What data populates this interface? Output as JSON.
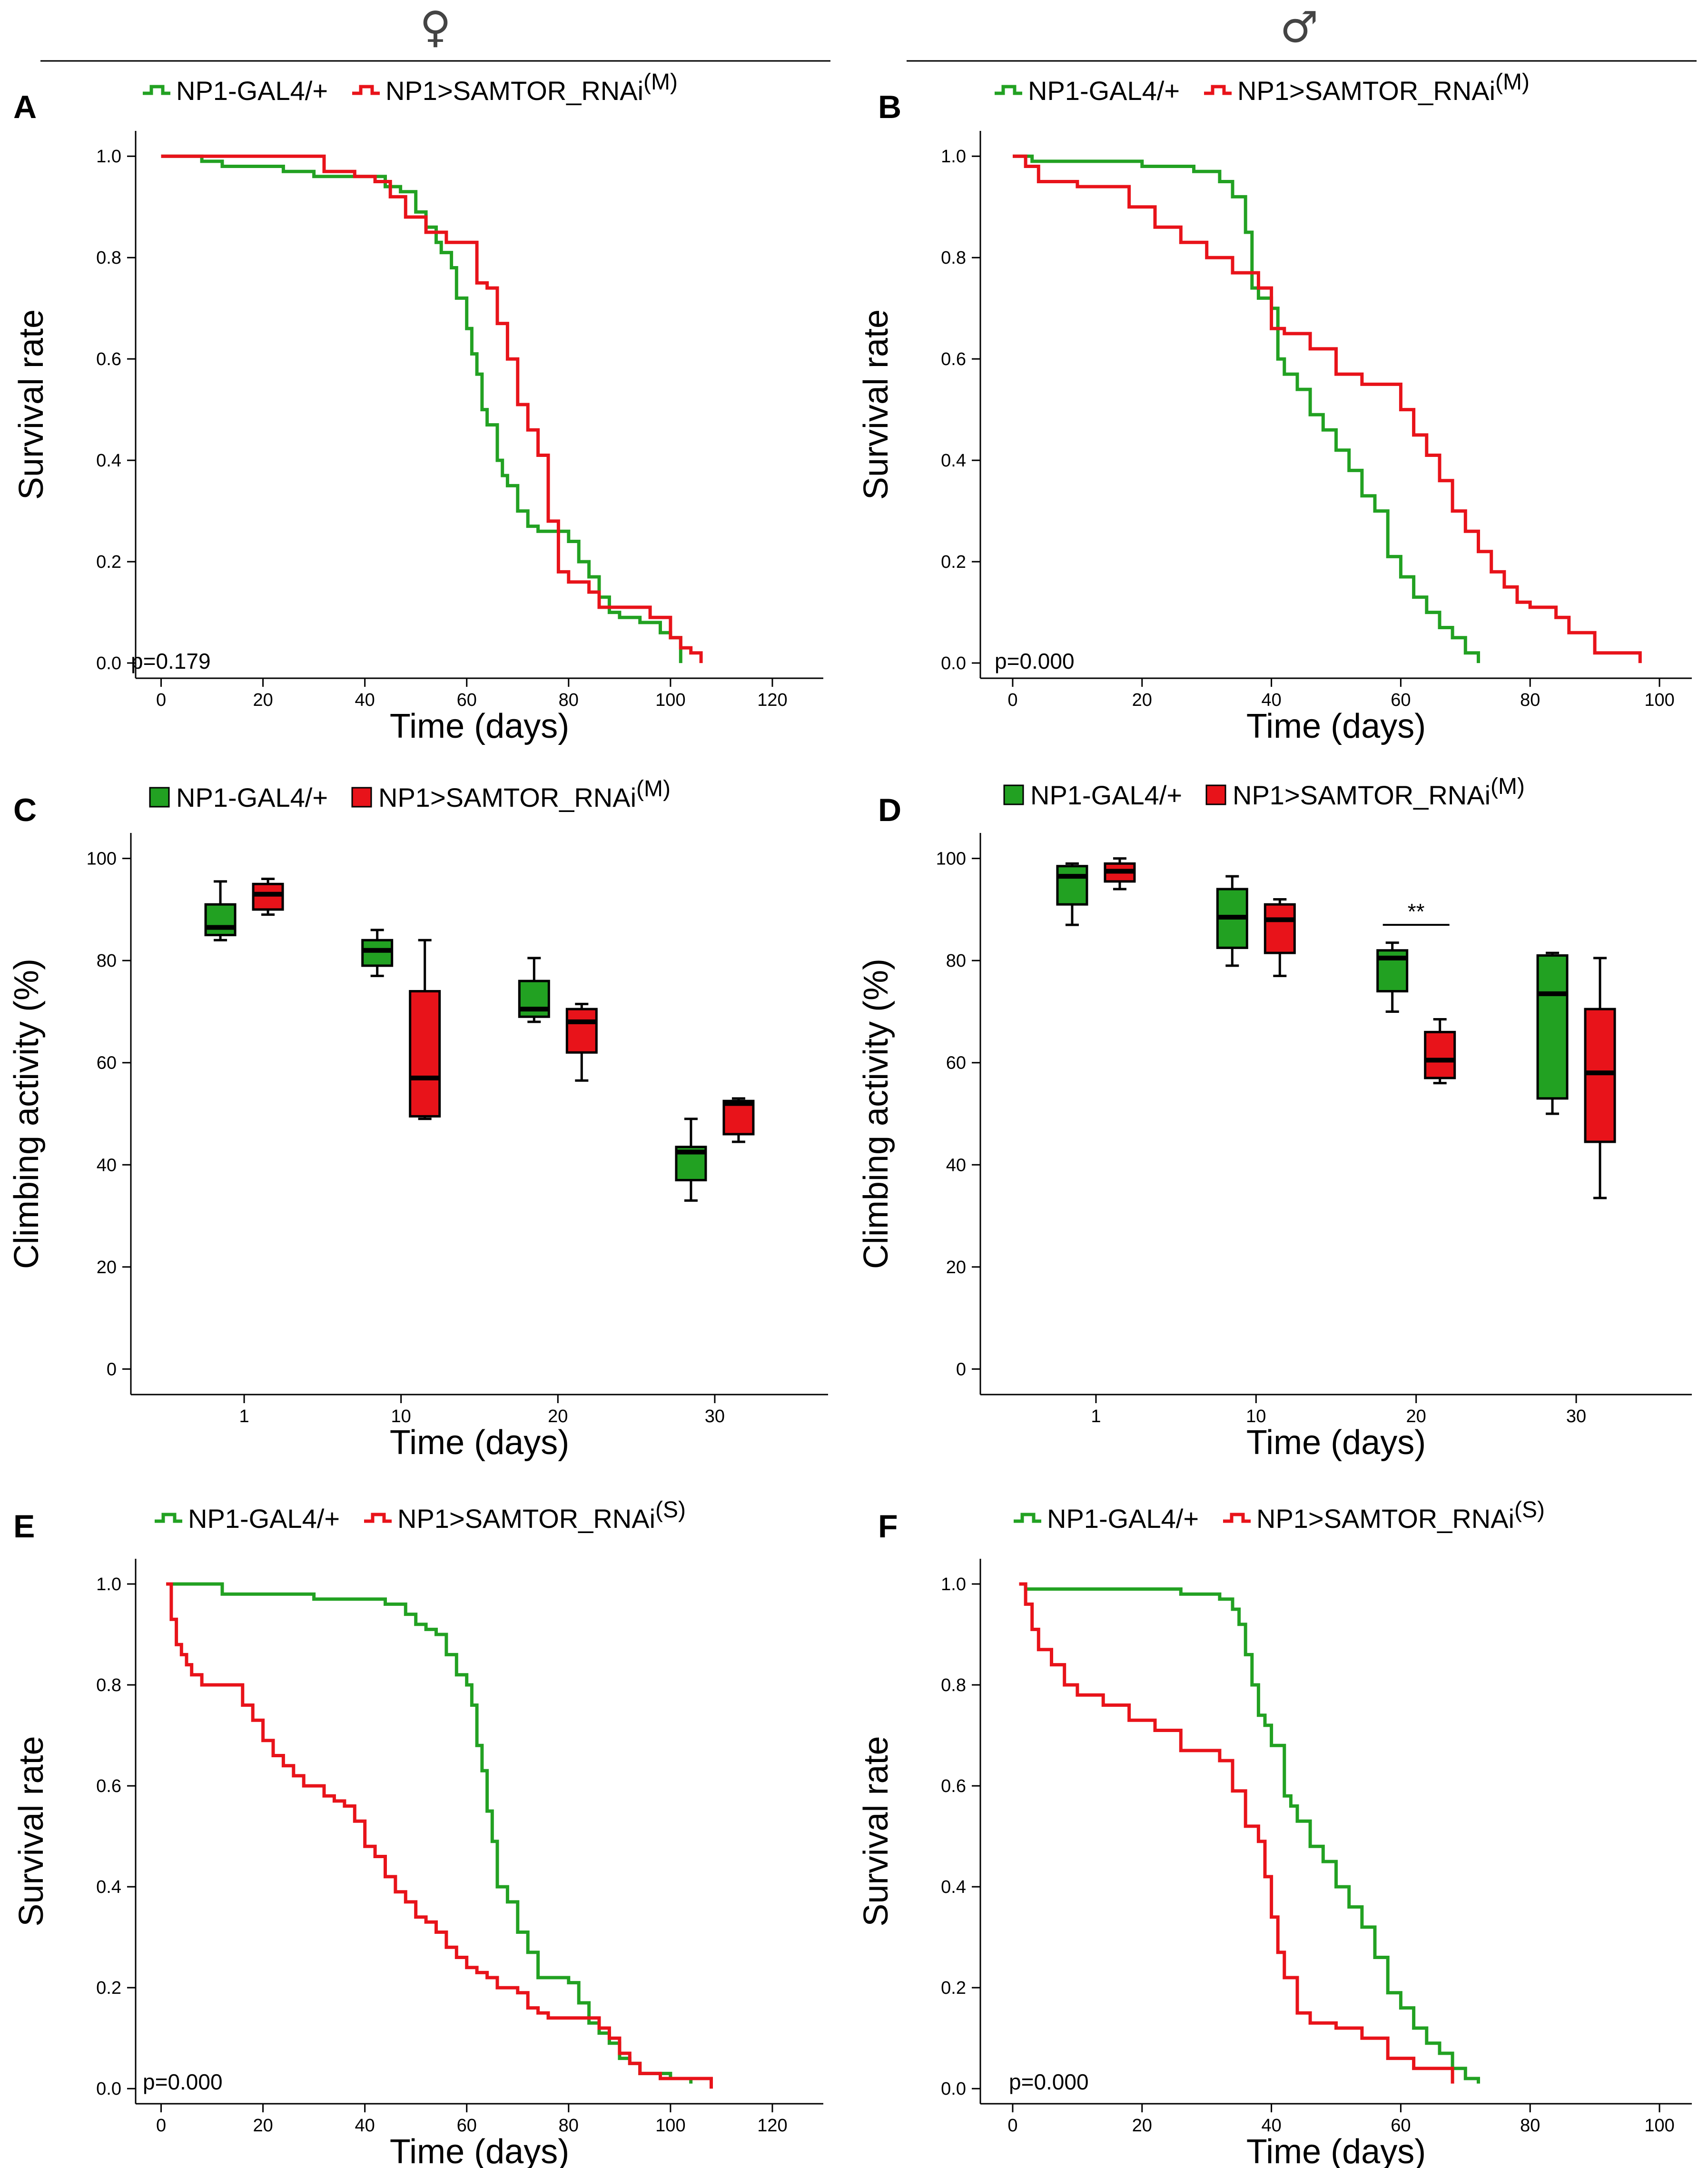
{
  "header": {
    "female_symbol": "♀",
    "male_symbol": "♂"
  },
  "colors": {
    "control": "#22a122",
    "rnai": "#e8131a",
    "axis": "#000000"
  },
  "chart_data": [
    {
      "panel": "A",
      "type": "line",
      "subtype": "survival",
      "ylabel": "Survival rate",
      "xlabel": "Time (days)",
      "xlim": [
        -5,
        130
      ],
      "ylim": [
        -0.03,
        1.05
      ],
      "xticks": [
        0,
        20,
        40,
        60,
        80,
        100,
        120
      ],
      "yticks": [
        0.0,
        0.2,
        0.4,
        0.6,
        0.8,
        1.0
      ],
      "ytick_labels": [
        "0.0",
        "0.2",
        "0.4",
        "0.6",
        "0.8",
        "1.0"
      ],
      "pvalue": "p=0.179",
      "legend": [
        {
          "name": "NP1-GAL4/+",
          "sup": "",
          "color": "#22a122"
        },
        {
          "name": "NP1>SAMTOR_RNAi",
          "sup": "(M)",
          "color": "#e8131a"
        }
      ],
      "series": [
        {
          "name": "NP1-GAL4/+",
          "color": "#22a122",
          "x": [
            0,
            8,
            12,
            24,
            30,
            40,
            44,
            47,
            50,
            52,
            54,
            55,
            57,
            58,
            60,
            61,
            62,
            63,
            64,
            66,
            67,
            68,
            70,
            72,
            74,
            76,
            80,
            82,
            84,
            86,
            88,
            90,
            94,
            98,
            100,
            102
          ],
          "y": [
            1.0,
            0.99,
            0.98,
            0.97,
            0.96,
            0.96,
            0.94,
            0.93,
            0.89,
            0.86,
            0.83,
            0.81,
            0.78,
            0.72,
            0.66,
            0.61,
            0.57,
            0.5,
            0.47,
            0.4,
            0.37,
            0.35,
            0.3,
            0.27,
            0.26,
            0.26,
            0.24,
            0.2,
            0.17,
            0.13,
            0.1,
            0.09,
            0.08,
            0.06,
            0.05,
            0.0
          ]
        },
        {
          "name": "NP1>SAMTOR_RNAi(M)",
          "color": "#e8131a",
          "x": [
            0,
            10,
            32,
            38,
            42,
            45,
            48,
            52,
            56,
            62,
            64,
            66,
            68,
            70,
            72,
            74,
            76,
            78,
            80,
            84,
            86,
            96,
            100,
            102,
            104,
            106
          ],
          "y": [
            1.0,
            1.0,
            0.97,
            0.96,
            0.95,
            0.92,
            0.88,
            0.85,
            0.83,
            0.75,
            0.74,
            0.67,
            0.6,
            0.51,
            0.46,
            0.41,
            0.28,
            0.18,
            0.16,
            0.14,
            0.11,
            0.09,
            0.05,
            0.03,
            0.02,
            0.0
          ]
        }
      ]
    },
    {
      "panel": "B",
      "type": "line",
      "subtype": "survival",
      "ylabel": "Survival rate",
      "xlabel": "Time (days)",
      "xlim": [
        -5,
        105
      ],
      "ylim": [
        -0.03,
        1.05
      ],
      "xticks": [
        0,
        20,
        40,
        60,
        80,
        100
      ],
      "yticks": [
        0.0,
        0.2,
        0.4,
        0.6,
        0.8,
        1.0
      ],
      "ytick_labels": [
        "0.0",
        "0.2",
        "0.4",
        "0.6",
        "0.8",
        "1.0"
      ],
      "pvalue": "p=0.000",
      "legend": [
        {
          "name": "NP1-GAL4/+",
          "sup": "",
          "color": "#22a122"
        },
        {
          "name": "NP1>SAMTOR_RNAi",
          "sup": "(M)",
          "color": "#e8131a"
        }
      ],
      "series": [
        {
          "name": "NP1-GAL4/+",
          "color": "#22a122",
          "x": [
            0,
            3,
            20,
            28,
            32,
            34,
            36,
            37,
            38,
            40,
            41,
            42,
            44,
            46,
            48,
            50,
            52,
            54,
            56,
            58,
            60,
            62,
            64,
            66,
            68,
            70,
            72
          ],
          "y": [
            1.0,
            0.99,
            0.98,
            0.97,
            0.95,
            0.92,
            0.85,
            0.74,
            0.72,
            0.7,
            0.6,
            0.57,
            0.54,
            0.49,
            0.46,
            0.42,
            0.38,
            0.33,
            0.3,
            0.21,
            0.17,
            0.13,
            0.1,
            0.07,
            0.05,
            0.02,
            0.0
          ]
        },
        {
          "name": "NP1>SAMTOR_RNAi(M)",
          "color": "#e8131a",
          "x": [
            0,
            2,
            4,
            10,
            18,
            22,
            26,
            30,
            34,
            38,
            40,
            42,
            46,
            50,
            54,
            60,
            62,
            64,
            66,
            68,
            70,
            72,
            74,
            76,
            78,
            80,
            84,
            86,
            90,
            96,
            97
          ],
          "y": [
            1.0,
            0.98,
            0.95,
            0.94,
            0.9,
            0.86,
            0.83,
            0.8,
            0.77,
            0.74,
            0.66,
            0.65,
            0.62,
            0.57,
            0.55,
            0.5,
            0.45,
            0.41,
            0.36,
            0.3,
            0.26,
            0.22,
            0.18,
            0.15,
            0.12,
            0.11,
            0.09,
            0.06,
            0.02,
            0.02,
            0.0
          ]
        }
      ]
    },
    {
      "panel": "C",
      "type": "box",
      "ylabel": "Climbing activity (%)",
      "xlabel": "Time (days)",
      "categories": [
        "1",
        "10",
        "20",
        "30"
      ],
      "ylim": [
        -5,
        105
      ],
      "yticks": [
        0,
        20,
        40,
        60,
        80,
        100
      ],
      "legend": [
        {
          "name": "NP1-GAL4/+",
          "sup": "",
          "color": "#22a122"
        },
        {
          "name": "NP1>SAMTOR_RNAi",
          "sup": "(M)",
          "color": "#e8131a"
        }
      ],
      "significance": [],
      "series": [
        {
          "name": "NP1-GAL4/+",
          "color": "#22a122",
          "boxes": [
            {
              "min": 84,
              "q1": 85,
              "median": 86.5,
              "q3": 91,
              "max": 95.5
            },
            {
              "min": 77,
              "q1": 79,
              "median": 82,
              "q3": 84,
              "max": 86
            },
            {
              "min": 68,
              "q1": 69,
              "median": 70.5,
              "q3": 76,
              "max": 80.5
            },
            {
              "min": 33,
              "q1": 37,
              "median": 42.5,
              "q3": 43.5,
              "max": 49
            }
          ]
        },
        {
          "name": "NP1>SAMTOR_RNAi(M)",
          "color": "#e8131a",
          "boxes": [
            {
              "min": 89,
              "q1": 90,
              "median": 93,
              "q3": 95,
              "max": 96
            },
            {
              "min": 49,
              "q1": 49.5,
              "median": 57,
              "q3": 74,
              "max": 84
            },
            {
              "min": 56.5,
              "q1": 62,
              "median": 68,
              "q3": 70.5,
              "max": 71.5
            },
            {
              "min": 44.5,
              "q1": 46,
              "median": 52,
              "q3": 52.5,
              "max": 53
            }
          ]
        }
      ]
    },
    {
      "panel": "D",
      "type": "box",
      "ylabel": "Climbing activity (%)",
      "xlabel": "Time (days)",
      "categories": [
        "1",
        "10",
        "20",
        "30"
      ],
      "ylim": [
        -5,
        105
      ],
      "yticks": [
        0,
        20,
        40,
        60,
        80,
        100
      ],
      "legend": [
        {
          "name": "NP1-GAL4/+",
          "sup": "",
          "color": "#22a122"
        },
        {
          "name": "NP1>SAMTOR_RNAi",
          "sup": "(M)",
          "color": "#e8131a"
        }
      ],
      "significance": [
        {
          "category_index": 2,
          "label": "**",
          "y": 87
        }
      ],
      "series": [
        {
          "name": "NP1-GAL4/+",
          "color": "#22a122",
          "boxes": [
            {
              "min": 87,
              "q1": 91,
              "median": 96.5,
              "q3": 98.5,
              "max": 99
            },
            {
              "min": 79,
              "q1": 82.5,
              "median": 88.5,
              "q3": 94,
              "max": 96.5
            },
            {
              "min": 70,
              "q1": 74,
              "median": 80.5,
              "q3": 82,
              "max": 83.5
            },
            {
              "min": 50,
              "q1": 53,
              "median": 73.5,
              "q3": 81,
              "max": 81.5
            }
          ]
        },
        {
          "name": "NP1>SAMTOR_RNAi(M)",
          "color": "#e8131a",
          "boxes": [
            {
              "min": 94,
              "q1": 95.5,
              "median": 97.5,
              "q3": 99,
              "max": 100
            },
            {
              "min": 77,
              "q1": 81.5,
              "median": 88,
              "q3": 91,
              "max": 92
            },
            {
              "min": 56,
              "q1": 57,
              "median": 60.5,
              "q3": 66,
              "max": 68.5
            },
            {
              "min": 33.5,
              "q1": 44.5,
              "median": 58,
              "q3": 70.5,
              "max": 80.5
            }
          ]
        }
      ]
    },
    {
      "panel": "E",
      "type": "line",
      "subtype": "survival",
      "ylabel": "Survival rate",
      "xlabel": "Time (days)",
      "xlim": [
        -5,
        130
      ],
      "ylim": [
        -0.03,
        1.05
      ],
      "xticks": [
        0,
        20,
        40,
        60,
        80,
        100,
        120
      ],
      "yticks": [
        0.0,
        0.2,
        0.4,
        0.6,
        0.8,
        1.0
      ],
      "ytick_labels": [
        "0.0",
        "0.2",
        "0.4",
        "0.6",
        "0.8",
        "1.0"
      ],
      "pvalue": "p=0.000",
      "legend": [
        {
          "name": "NP1-GAL4/+",
          "sup": "",
          "color": "#22a122"
        },
        {
          "name": "NP1>SAMTOR_RNAi",
          "sup": "(S)",
          "color": "#e8131a"
        }
      ],
      "series": [
        {
          "name": "NP1-GAL4/+",
          "color": "#22a122",
          "x": [
            1,
            10,
            12,
            26,
            30,
            44,
            48,
            50,
            52,
            54,
            56,
            58,
            60,
            61,
            62,
            63,
            64,
            65,
            66,
            68,
            70,
            72,
            74,
            80,
            82,
            84,
            86,
            88,
            90,
            92,
            94,
            100,
            104
          ],
          "y": [
            1.0,
            1.0,
            0.98,
            0.98,
            0.97,
            0.96,
            0.94,
            0.92,
            0.91,
            0.9,
            0.86,
            0.82,
            0.8,
            0.76,
            0.68,
            0.63,
            0.55,
            0.49,
            0.4,
            0.37,
            0.31,
            0.27,
            0.22,
            0.21,
            0.17,
            0.13,
            0.11,
            0.09,
            0.06,
            0.05,
            0.03,
            0.02,
            0.01
          ]
        },
        {
          "name": "NP1>SAMTOR_RNAi(S)",
          "color": "#e8131a",
          "x": [
            1,
            2,
            3,
            4,
            5,
            6,
            8,
            16,
            18,
            20,
            22,
            24,
            26,
            28,
            32,
            34,
            36,
            38,
            40,
            42,
            44,
            46,
            48,
            50,
            52,
            54,
            56,
            58,
            60,
            62,
            64,
            66,
            70,
            72,
            74,
            76,
            80,
            86,
            88,
            90,
            92,
            94,
            98,
            108
          ],
          "y": [
            1.0,
            0.93,
            0.88,
            0.86,
            0.84,
            0.82,
            0.8,
            0.76,
            0.73,
            0.69,
            0.66,
            0.64,
            0.62,
            0.6,
            0.58,
            0.57,
            0.56,
            0.53,
            0.48,
            0.46,
            0.42,
            0.39,
            0.37,
            0.34,
            0.33,
            0.31,
            0.28,
            0.26,
            0.24,
            0.23,
            0.22,
            0.2,
            0.19,
            0.16,
            0.15,
            0.14,
            0.14,
            0.12,
            0.1,
            0.07,
            0.05,
            0.03,
            0.02,
            0.0
          ]
        }
      ]
    },
    {
      "panel": "F",
      "type": "line",
      "subtype": "survival",
      "ylabel": "Survival rate",
      "xlabel": "Time (days)",
      "xlim": [
        -5,
        105
      ],
      "ylim": [
        -0.03,
        1.05
      ],
      "xticks": [
        0,
        20,
        40,
        60,
        80,
        100
      ],
      "yticks": [
        0.0,
        0.2,
        0.4,
        0.6,
        0.8,
        1.0
      ],
      "ytick_labels": [
        "0.0",
        "0.2",
        "0.4",
        "0.6",
        "0.8",
        "1.0"
      ],
      "pvalue": "p=0.000",
      "legend": [
        {
          "name": "NP1-GAL4/+",
          "sup": "",
          "color": "#22a122"
        },
        {
          "name": "NP1>SAMTOR_RNAi",
          "sup": "(S)",
          "color": "#e8131a"
        }
      ],
      "series": [
        {
          "name": "NP1-GAL4/+",
          "color": "#22a122",
          "x": [
            1,
            2,
            20,
            26,
            32,
            34,
            35,
            36,
            37,
            38,
            39,
            40,
            42,
            43,
            44,
            46,
            48,
            50,
            52,
            54,
            56,
            58,
            60,
            62,
            64,
            66,
            68,
            70,
            72
          ],
          "y": [
            1.0,
            0.99,
            0.99,
            0.98,
            0.97,
            0.95,
            0.92,
            0.86,
            0.8,
            0.74,
            0.72,
            0.68,
            0.58,
            0.56,
            0.53,
            0.48,
            0.45,
            0.4,
            0.36,
            0.32,
            0.26,
            0.19,
            0.16,
            0.12,
            0.09,
            0.07,
            0.04,
            0.02,
            0.01
          ]
        },
        {
          "name": "NP1>SAMTOR_RNAi(S)",
          "color": "#e8131a",
          "x": [
            1,
            2,
            3,
            4,
            6,
            8,
            10,
            14,
            18,
            22,
            26,
            32,
            34,
            36,
            38,
            39,
            40,
            41,
            42,
            44,
            46,
            50,
            54,
            58,
            62,
            68
          ],
          "y": [
            1.0,
            0.96,
            0.91,
            0.87,
            0.84,
            0.8,
            0.78,
            0.76,
            0.73,
            0.71,
            0.67,
            0.65,
            0.59,
            0.52,
            0.49,
            0.42,
            0.34,
            0.27,
            0.22,
            0.15,
            0.13,
            0.12,
            0.1,
            0.06,
            0.04,
            0.01
          ]
        }
      ]
    }
  ]
}
